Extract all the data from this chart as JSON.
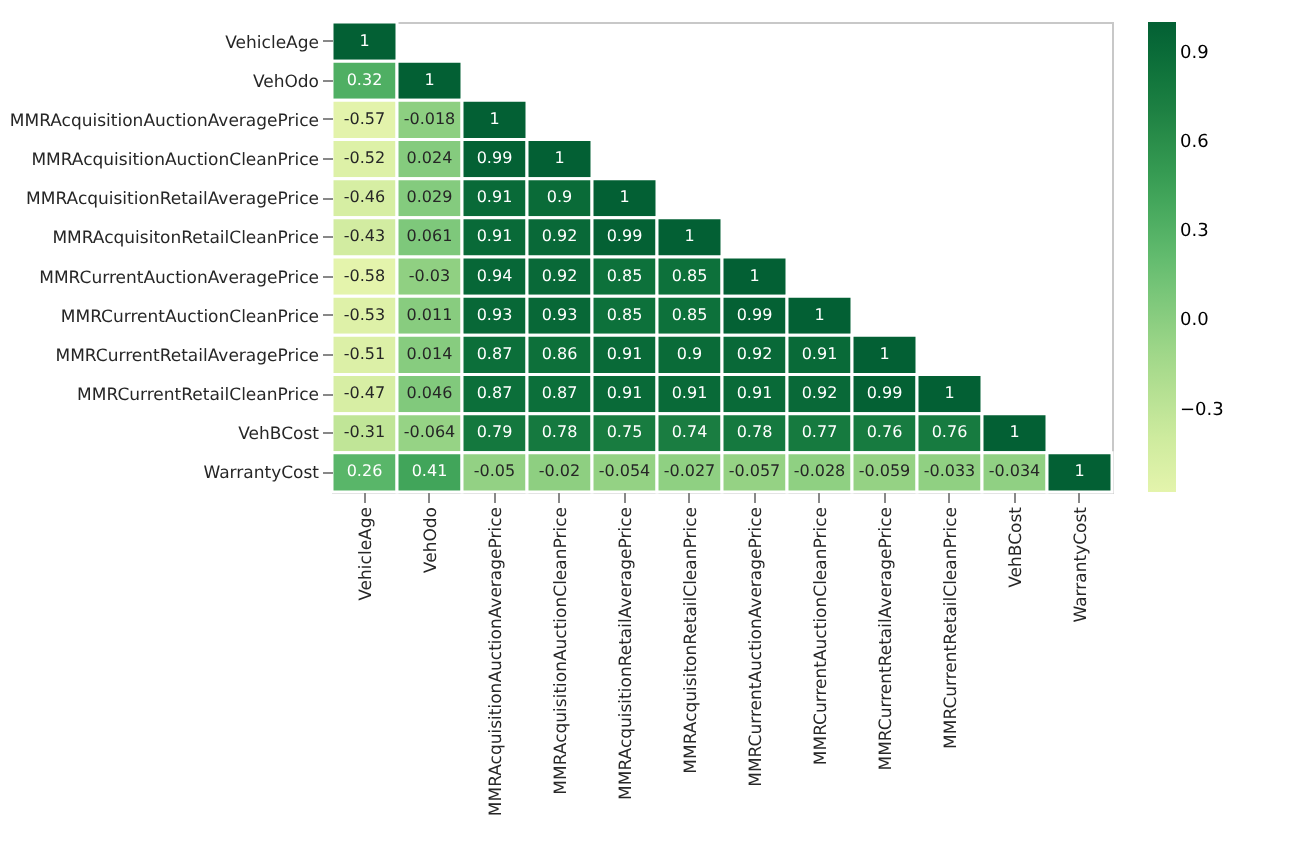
{
  "chart_data": {
    "type": "heatmap",
    "categories": [
      "VehicleAge",
      "VehOdo",
      "MMRAcquisitionAuctionAveragePrice",
      "MMRAcquisitionAuctionCleanPrice",
      "MMRAcquisitionRetailAveragePrice",
      "MMRAcquisitonRetailCleanPrice",
      "MMRCurrentAuctionAveragePrice",
      "MMRCurrentAuctionCleanPrice",
      "MMRCurrentRetailAveragePrice",
      "MMRCurrentRetailCleanPrice",
      "VehBCost",
      "WarrantyCost"
    ],
    "y_categories": [
      "VehicleAge",
      "VehOdo",
      "MMRAcquisitionAuctionAveragePrice",
      "MMRAcquisitionAuctionCleanPrice",
      "MMRAcquisitionRetailAveragePrice",
      "MMRAcquisitonRetailCleanPrice",
      "MMRCurrentAuctionAveragePrice",
      "MMRCurrentAuctionCleanPrice",
      "MMRCurrentRetailAveragePrice",
      "MMRCurrentRetailCleanPrice",
      "VehBCost",
      "WarrantyCost"
    ],
    "cells": [
      [
        1,
        null,
        null,
        null,
        null,
        null,
        null,
        null,
        null,
        null,
        null,
        null
      ],
      [
        0.32,
        1,
        null,
        null,
        null,
        null,
        null,
        null,
        null,
        null,
        null,
        null
      ],
      [
        -0.57,
        -0.018,
        1,
        null,
        null,
        null,
        null,
        null,
        null,
        null,
        null,
        null
      ],
      [
        -0.52,
        0.024,
        0.99,
        1,
        null,
        null,
        null,
        null,
        null,
        null,
        null,
        null
      ],
      [
        -0.46,
        0.029,
        0.91,
        0.9,
        1,
        null,
        null,
        null,
        null,
        null,
        null,
        null
      ],
      [
        -0.43,
        0.061,
        0.91,
        0.92,
        0.99,
        1,
        null,
        null,
        null,
        null,
        null,
        null
      ],
      [
        -0.58,
        -0.03,
        0.94,
        0.92,
        0.85,
        0.85,
        1,
        null,
        null,
        null,
        null,
        null
      ],
      [
        -0.53,
        0.011,
        0.93,
        0.93,
        0.85,
        0.85,
        0.99,
        1,
        null,
        null,
        null,
        null
      ],
      [
        -0.51,
        0.014,
        0.87,
        0.86,
        0.91,
        0.9,
        0.92,
        0.91,
        1,
        null,
        null,
        null
      ],
      [
        -0.47,
        0.046,
        0.87,
        0.87,
        0.91,
        0.91,
        0.91,
        0.92,
        0.99,
        1,
        null,
        null
      ],
      [
        -0.31,
        -0.064,
        0.79,
        0.78,
        0.75,
        0.74,
        0.78,
        0.77,
        0.76,
        0.76,
        1,
        null
      ],
      [
        0.26,
        0.41,
        -0.05,
        -0.02,
        -0.054,
        -0.027,
        -0.057,
        -0.028,
        -0.059,
        -0.033,
        -0.034,
        1
      ]
    ],
    "data_labels": true,
    "clim": [
      -0.58,
      1
    ],
    "cticks": [
      {
        "value": -0.3,
        "label": "−0.3"
      },
      {
        "value": 0,
        "label": "0.0"
      },
      0.3,
      0.6,
      0.9
    ]
  }
}
